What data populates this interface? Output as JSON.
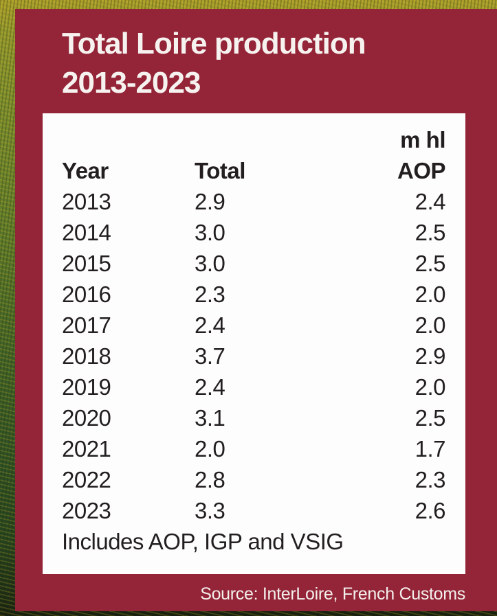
{
  "card": {
    "title_line1": "Total Loire production",
    "title_line2": "2013-2023",
    "source": "Source: InterLoire, French Customs"
  },
  "table": {
    "unit_label": "m hl",
    "columns": [
      "Year",
      "Total",
      "AOP"
    ],
    "rows": [
      [
        "2013",
        "2.9",
        "2.4"
      ],
      [
        "2014",
        "3.0",
        "2.5"
      ],
      [
        "2015",
        "3.0",
        "2.5"
      ],
      [
        "2016",
        "2.3",
        "2.0"
      ],
      [
        "2017",
        "2.4",
        "2.0"
      ],
      [
        "2018",
        "3.7",
        "2.9"
      ],
      [
        "2019",
        "2.4",
        "2.0"
      ],
      [
        "2020",
        "3.1",
        "2.5"
      ],
      [
        "2021",
        "2.0",
        "1.7"
      ],
      [
        "2022",
        "2.8",
        "2.3"
      ],
      [
        "2023",
        "3.3",
        "2.6"
      ]
    ],
    "footnote": "Includes AOP, IGP and VSIG"
  },
  "colors": {
    "card_maroon": "#942538",
    "panel_white": "#fdfdfd",
    "title_text": "#f6f2ef",
    "table_text": "#231f20"
  },
  "chart_data": {
    "type": "table",
    "title": "Total Loire production 2013-2023",
    "unit": "m hl",
    "columns": [
      "Year",
      "Total",
      "AOP"
    ],
    "rows": [
      [
        2013,
        2.9,
        2.4
      ],
      [
        2014,
        3.0,
        2.5
      ],
      [
        2015,
        3.0,
        2.5
      ],
      [
        2016,
        2.3,
        2.0
      ],
      [
        2017,
        2.4,
        2.0
      ],
      [
        2018,
        3.7,
        2.9
      ],
      [
        2019,
        2.4,
        2.0
      ],
      [
        2020,
        3.1,
        2.5
      ],
      [
        2021,
        2.0,
        1.7
      ],
      [
        2022,
        2.8,
        2.3
      ],
      [
        2023,
        3.3,
        2.6
      ]
    ],
    "footnote": "Includes AOP, IGP and VSIG",
    "source": "Source: InterLoire, French Customs"
  }
}
